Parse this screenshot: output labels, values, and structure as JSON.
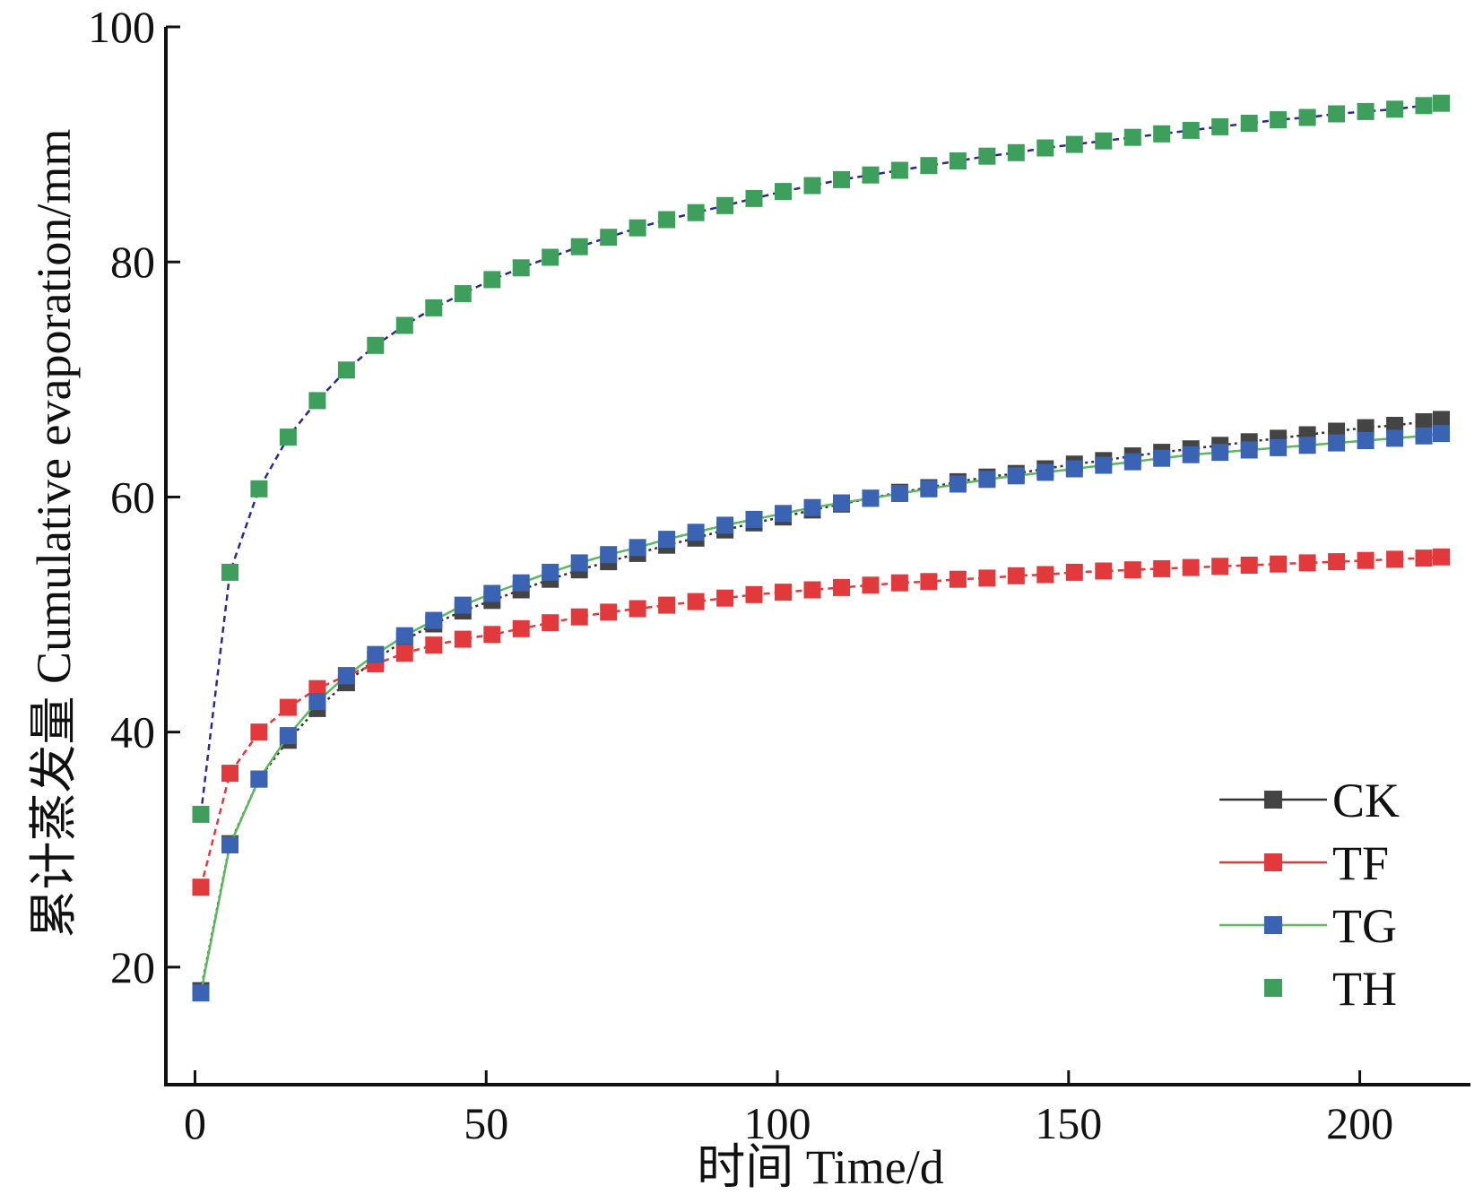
{
  "chart_data": {
    "type": "line",
    "title": "",
    "xlabel": "时间  Time/d",
    "ylabel": "累计蒸发量  Cumulative evaporation/mm",
    "xlim": [
      -5,
      219
    ],
    "ylim": [
      10,
      100
    ],
    "xticks": [
      0,
      50,
      100,
      150,
      200
    ],
    "yticks": [
      20,
      40,
      60,
      80,
      100
    ],
    "x": [
      1,
      6,
      11,
      16,
      21,
      26,
      31,
      36,
      41,
      46,
      51,
      56,
      61,
      66,
      71,
      76,
      81,
      86,
      91,
      96,
      101,
      106,
      111,
      116,
      121,
      126,
      131,
      136,
      141,
      146,
      151,
      156,
      161,
      166,
      171,
      176,
      181,
      186,
      191,
      196,
      201,
      206,
      211,
      214
    ],
    "series": [
      {
        "name": "CK",
        "line_color": "#333333",
        "marker_color": "#444444",
        "line_style": "dotted",
        "values": [
          18.0,
          30.5,
          36.0,
          39.3,
          42.0,
          44.2,
          46.2,
          47.8,
          49.2,
          50.3,
          51.2,
          52.1,
          53.0,
          53.8,
          54.5,
          55.2,
          55.9,
          56.5,
          57.2,
          57.8,
          58.3,
          58.9,
          59.4,
          59.9,
          60.4,
          60.8,
          61.3,
          61.7,
          62.0,
          62.4,
          62.8,
          63.1,
          63.5,
          63.8,
          64.1,
          64.4,
          64.7,
          65.0,
          65.3,
          65.6,
          65.9,
          66.1,
          66.4,
          66.6
        ]
      },
      {
        "name": "TF",
        "line_color": "#e4393c",
        "marker_color": "#e23a3c",
        "line_style": "dashed",
        "values": [
          26.8,
          36.5,
          40.0,
          42.1,
          43.7,
          44.8,
          45.8,
          46.7,
          47.4,
          47.9,
          48.3,
          48.8,
          49.3,
          49.8,
          50.2,
          50.5,
          50.8,
          51.1,
          51.4,
          51.7,
          51.9,
          52.1,
          52.3,
          52.5,
          52.7,
          52.8,
          53.0,
          53.1,
          53.3,
          53.4,
          53.6,
          53.7,
          53.8,
          53.9,
          54.0,
          54.1,
          54.2,
          54.3,
          54.4,
          54.5,
          54.6,
          54.7,
          54.8,
          54.9
        ]
      },
      {
        "name": "TG",
        "line_color": "#5cb85c",
        "marker_color": "#3a63b4",
        "line_style": "solid",
        "values": [
          17.8,
          30.4,
          36.0,
          39.7,
          42.6,
          44.8,
          46.6,
          48.2,
          49.5,
          50.8,
          51.8,
          52.7,
          53.6,
          54.4,
          55.1,
          55.7,
          56.4,
          57.0,
          57.6,
          58.1,
          58.6,
          59.1,
          59.5,
          59.9,
          60.3,
          60.7,
          61.1,
          61.5,
          61.8,
          62.1,
          62.4,
          62.7,
          63.0,
          63.3,
          63.6,
          63.8,
          64.0,
          64.2,
          64.4,
          64.6,
          64.8,
          65.0,
          65.2,
          65.4
        ]
      },
      {
        "name": "TH",
        "line_color": "#2a2a8c",
        "marker_color": "#3e9e5c",
        "line_style": "dashed",
        "values": [
          33.0,
          53.6,
          60.7,
          65.1,
          68.2,
          70.8,
          72.9,
          74.6,
          76.1,
          77.3,
          78.5,
          79.5,
          80.4,
          81.3,
          82.1,
          82.9,
          83.6,
          84.2,
          84.8,
          85.4,
          86.0,
          86.5,
          87.0,
          87.4,
          87.8,
          88.2,
          88.6,
          89.0,
          89.3,
          89.7,
          90.0,
          90.3,
          90.6,
          90.9,
          91.2,
          91.5,
          91.8,
          92.1,
          92.3,
          92.6,
          92.8,
          93.0,
          93.3,
          93.5
        ]
      }
    ],
    "legend": {
      "position": "bottom-right",
      "entries": [
        {
          "label": "CK",
          "has_line": true
        },
        {
          "label": "TF",
          "has_line": true
        },
        {
          "label": "TG",
          "has_line": true
        },
        {
          "label": "TH",
          "has_line": false
        }
      ]
    }
  }
}
